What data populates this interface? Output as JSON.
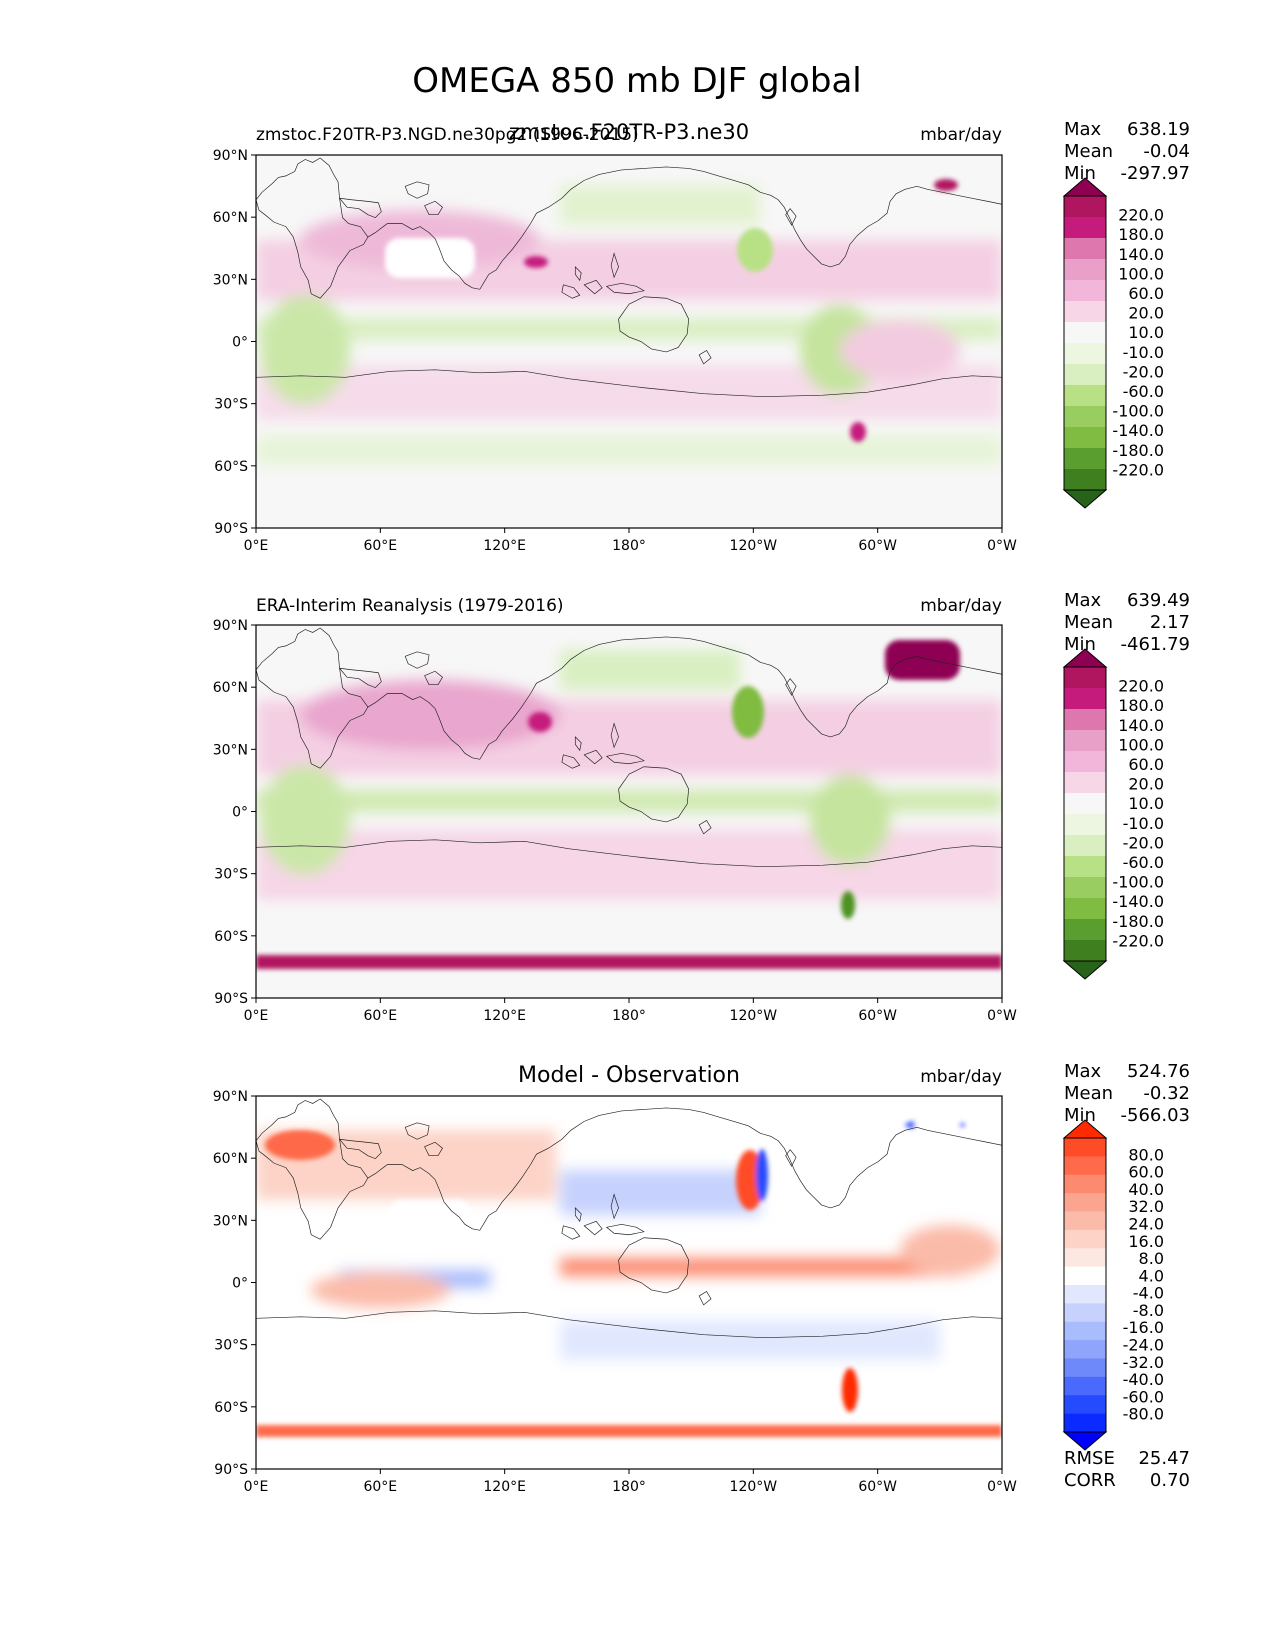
{
  "figure": {
    "title": "OMEGA 850 mb DJF global",
    "overlap_label": "zmstoc.F20TR-P3.ne30"
  },
  "axes": {
    "lat_ticks": [
      "90°N",
      "60°N",
      "30°N",
      "0°",
      "30°S",
      "60°S",
      "90°S"
    ],
    "lon_ticks": [
      "0°E",
      "60°E",
      "120°E",
      "180°",
      "120°W",
      "60°W",
      "0°W"
    ]
  },
  "panels": [
    {
      "id": "test",
      "left_title": "zmstoc.F20TR-P3.NGD.ne30pg2 (1996-2015)",
      "center_title": "",
      "units": "mbar/day",
      "stats": [
        {
          "label": "Max",
          "value": "638.19"
        },
        {
          "label": "Mean",
          "value": "-0.04"
        },
        {
          "label": "Min",
          "value": "-297.97"
        }
      ]
    },
    {
      "id": "reference",
      "left_title": "ERA-Interim Reanalysis (1979-2016)",
      "center_title": "",
      "units": "mbar/day",
      "stats": [
        {
          "label": "Max",
          "value": "639.49"
        },
        {
          "label": "Mean",
          "value": "2.17"
        },
        {
          "label": "Min",
          "value": "-461.79"
        }
      ]
    },
    {
      "id": "diff",
      "left_title": "",
      "center_title": "Model - Observation",
      "units": "mbar/day",
      "stats": [
        {
          "label": "Max",
          "value": "524.76"
        },
        {
          "label": "Mean",
          "value": "-0.32"
        },
        {
          "label": "Min",
          "value": "-566.03"
        }
      ],
      "extra_stats": [
        {
          "label": "RMSE",
          "value": "25.47"
        },
        {
          "label": "CORR",
          "value": "0.70"
        }
      ]
    }
  ],
  "colorbars": {
    "field": {
      "labels": [
        "220.0",
        "180.0",
        "140.0",
        "100.0",
        "60.0",
        "20.0",
        "10.0",
        "-10.0",
        "-20.0",
        "-60.0",
        "-100.0",
        "-140.0",
        "-180.0",
        "-220.0"
      ],
      "colors": [
        "#8e0152",
        "#b0155f",
        "#c51b7d",
        "#de77ae",
        "#e8a0c8",
        "#f1b6da",
        "#f7d6e8",
        "#f7f7f7",
        "#edf6e1",
        "#d9efc2",
        "#b8e186",
        "#9acd61",
        "#7fbc41",
        "#5a9e2f",
        "#3f7f1f",
        "#276419"
      ]
    },
    "diff": {
      "labels": [
        "80.0",
        "60.0",
        "40.0",
        "32.0",
        "24.0",
        "16.0",
        "8.0",
        "4.0",
        "-4.0",
        "-8.0",
        "-16.0",
        "-24.0",
        "-32.0",
        "-40.0",
        "-60.0",
        "-80.0"
      ],
      "colors": [
        "#ff2a00",
        "#ff4b26",
        "#fe6a4a",
        "#fc8a6e",
        "#fba490",
        "#fbbba9",
        "#fcd3c6",
        "#fde8e1",
        "#ffffff",
        "#e1e8fe",
        "#c6d2fd",
        "#a9bcfc",
        "#8fa4fb",
        "#6e89fa",
        "#4a6afd",
        "#264bff",
        "#0a2aff",
        "#0000ff"
      ]
    }
  },
  "map_colors": {
    "ocean_neutral": "#f7f7f7",
    "pink_light": "#f4cfe3",
    "pink_mid": "#e9a6ce",
    "magenta": "#b0155f",
    "green_light": "#dcefc4",
    "green_mid": "#b8e186",
    "diff_red_light": "#fbbba9",
    "diff_red": "#fc8a6e",
    "diff_red_strong": "#ff4b26",
    "diff_blue_light": "#c6d2fd",
    "diff_blue": "#8fa4fb",
    "diff_blue_strong": "#264bff"
  }
}
